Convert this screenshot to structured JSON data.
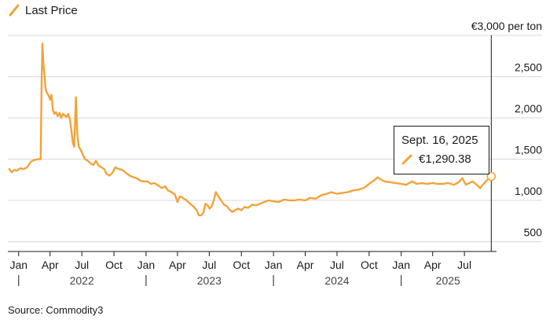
{
  "legend": {
    "series_label": "Last Price"
  },
  "source": "Source: Commodity3",
  "tooltip": {
    "date": "Sept. 16, 2025",
    "value": "€1,290.38"
  },
  "colors": {
    "line": "#f2a33a",
    "grid": "#d9d9d9",
    "text": "#1a1a1a",
    "axis": "#1a1a1a"
  },
  "chart_data": {
    "type": "line",
    "title": "",
    "xlabel": "",
    "ylabel": "",
    "unit_label": "€3,000 per ton",
    "y_axis_position": "right",
    "ylim": [
      500,
      3000
    ],
    "y_ticks": [
      500,
      1000,
      1500,
      2000,
      2500,
      3000
    ],
    "y_tick_labels": [
      "500",
      "1,000",
      "1,500",
      "2,000",
      "2,500",
      "€3,000 per ton"
    ],
    "x_range": [
      "2021-12-01",
      "2025-10-01"
    ],
    "month_ticks": [
      {
        "date": "2022-01-01",
        "label": "Jan"
      },
      {
        "date": "2022-04-01",
        "label": "Apr"
      },
      {
        "date": "2022-07-01",
        "label": "Jul"
      },
      {
        "date": "2022-10-01",
        "label": "Oct"
      },
      {
        "date": "2023-01-01",
        "label": "Jan"
      },
      {
        "date": "2023-04-01",
        "label": "Apr"
      },
      {
        "date": "2023-07-01",
        "label": "Jul"
      },
      {
        "date": "2023-10-01",
        "label": "Oct"
      },
      {
        "date": "2024-01-01",
        "label": "Jan"
      },
      {
        "date": "2024-04-01",
        "label": "Apr"
      },
      {
        "date": "2024-07-01",
        "label": "Jul"
      },
      {
        "date": "2024-10-01",
        "label": "Oct"
      },
      {
        "date": "2025-01-01",
        "label": "Jan"
      },
      {
        "date": "2025-04-01",
        "label": "Apr"
      },
      {
        "date": "2025-07-01",
        "label": "Jul"
      }
    ],
    "year_ticks": [
      {
        "date": "2022-01-01",
        "label": "2022",
        "label_date": "2022-07-01"
      },
      {
        "date": "2023-01-01",
        "label": "2023",
        "label_date": "2023-07-01"
      },
      {
        "date": "2024-01-01",
        "label": "2024",
        "label_date": "2024-07-01"
      },
      {
        "date": "2025-01-01",
        "label": "2025",
        "label_date": "2025-05-15"
      }
    ],
    "crosshair_date": "2025-09-16",
    "grid": true,
    "legend": "top-left",
    "series": [
      {
        "name": "Last Price",
        "points": [
          [
            "2021-12-05",
            1380
          ],
          [
            "2021-12-12",
            1340
          ],
          [
            "2021-12-19",
            1370
          ],
          [
            "2021-12-26",
            1360
          ],
          [
            "2022-01-05",
            1390
          ],
          [
            "2022-01-15",
            1380
          ],
          [
            "2022-01-25",
            1400
          ],
          [
            "2022-02-05",
            1470
          ],
          [
            "2022-02-15",
            1490
          ],
          [
            "2022-02-25",
            1500
          ],
          [
            "2022-03-05",
            1500
          ],
          [
            "2022-03-08",
            2500
          ],
          [
            "2022-03-10",
            2900
          ],
          [
            "2022-03-13",
            2650
          ],
          [
            "2022-03-16",
            2520
          ],
          [
            "2022-03-19",
            2350
          ],
          [
            "2022-03-23",
            2300
          ],
          [
            "2022-03-27",
            2280
          ],
          [
            "2022-04-01",
            2220
          ],
          [
            "2022-04-05",
            2280
          ],
          [
            "2022-04-09",
            2100
          ],
          [
            "2022-04-13",
            2050
          ],
          [
            "2022-04-18",
            2070
          ],
          [
            "2022-04-23",
            2020
          ],
          [
            "2022-04-28",
            2060
          ],
          [
            "2022-05-03",
            2000
          ],
          [
            "2022-05-08",
            2050
          ],
          [
            "2022-05-13",
            2030
          ],
          [
            "2022-05-18",
            2010
          ],
          [
            "2022-05-23",
            2050
          ],
          [
            "2022-05-28",
            1980
          ],
          [
            "2022-06-01",
            1850
          ],
          [
            "2022-06-05",
            1700
          ],
          [
            "2022-06-09",
            1650
          ],
          [
            "2022-06-14",
            2250
          ],
          [
            "2022-06-18",
            1800
          ],
          [
            "2022-06-22",
            1650
          ],
          [
            "2022-06-27",
            1620
          ],
          [
            "2022-07-03",
            1560
          ],
          [
            "2022-07-10",
            1500
          ],
          [
            "2022-07-18",
            1480
          ],
          [
            "2022-07-26",
            1450
          ],
          [
            "2022-08-03",
            1430
          ],
          [
            "2022-08-10",
            1480
          ],
          [
            "2022-08-18",
            1420
          ],
          [
            "2022-08-26",
            1400
          ],
          [
            "2022-09-03",
            1380
          ],
          [
            "2022-09-10",
            1320
          ],
          [
            "2022-09-18",
            1300
          ],
          [
            "2022-09-26",
            1330
          ],
          [
            "2022-10-05",
            1400
          ],
          [
            "2022-10-15",
            1380
          ],
          [
            "2022-10-25",
            1370
          ],
          [
            "2022-11-05",
            1330
          ],
          [
            "2022-11-15",
            1300
          ],
          [
            "2022-11-25",
            1280
          ],
          [
            "2022-12-05",
            1270
          ],
          [
            "2022-12-15",
            1240
          ],
          [
            "2022-12-25",
            1230
          ],
          [
            "2023-01-05",
            1230
          ],
          [
            "2023-01-15",
            1200
          ],
          [
            "2023-01-25",
            1210
          ],
          [
            "2023-02-05",
            1180
          ],
          [
            "2023-02-15",
            1150
          ],
          [
            "2023-02-25",
            1170
          ],
          [
            "2023-03-05",
            1120
          ],
          [
            "2023-03-15",
            1100
          ],
          [
            "2023-03-25",
            1070
          ],
          [
            "2023-04-01",
            980
          ],
          [
            "2023-04-08",
            1050
          ],
          [
            "2023-04-16",
            1030
          ],
          [
            "2023-04-24",
            1010
          ],
          [
            "2023-05-02",
            980
          ],
          [
            "2023-05-10",
            950
          ],
          [
            "2023-05-18",
            920
          ],
          [
            "2023-05-26",
            880
          ],
          [
            "2023-06-01",
            820
          ],
          [
            "2023-06-08",
            820
          ],
          [
            "2023-06-14",
            850
          ],
          [
            "2023-06-20",
            960
          ],
          [
            "2023-06-26",
            940
          ],
          [
            "2023-07-02",
            900
          ],
          [
            "2023-07-08",
            930
          ],
          [
            "2023-07-14",
            1000
          ],
          [
            "2023-07-20",
            1100
          ],
          [
            "2023-07-27",
            1050
          ],
          [
            "2023-08-04",
            1000
          ],
          [
            "2023-08-12",
            950
          ],
          [
            "2023-08-20",
            930
          ],
          [
            "2023-08-28",
            890
          ],
          [
            "2023-09-05",
            860
          ],
          [
            "2023-09-13",
            880
          ],
          [
            "2023-09-21",
            900
          ],
          [
            "2023-10-01",
            880
          ],
          [
            "2023-10-10",
            920
          ],
          [
            "2023-10-20",
            910
          ],
          [
            "2023-11-01",
            950
          ],
          [
            "2023-11-12",
            940
          ],
          [
            "2023-11-24",
            960
          ],
          [
            "2023-12-05",
            980
          ],
          [
            "2023-12-18",
            1000
          ],
          [
            "2024-01-01",
            990
          ],
          [
            "2024-01-15",
            980
          ],
          [
            "2024-02-01",
            1010
          ],
          [
            "2024-02-15",
            1000
          ],
          [
            "2024-03-01",
            1000
          ],
          [
            "2024-03-15",
            1010
          ],
          [
            "2024-04-01",
            1000
          ],
          [
            "2024-04-15",
            1030
          ],
          [
            "2024-05-01",
            1020
          ],
          [
            "2024-05-15",
            1060
          ],
          [
            "2024-06-01",
            1080
          ],
          [
            "2024-06-15",
            1100
          ],
          [
            "2024-07-01",
            1080
          ],
          [
            "2024-07-15",
            1090
          ],
          [
            "2024-08-01",
            1100
          ],
          [
            "2024-08-15",
            1120
          ],
          [
            "2024-09-01",
            1130
          ],
          [
            "2024-09-15",
            1150
          ],
          [
            "2024-10-01",
            1200
          ],
          [
            "2024-10-15",
            1240
          ],
          [
            "2024-10-25",
            1280
          ],
          [
            "2024-11-05",
            1250
          ],
          [
            "2024-11-15",
            1230
          ],
          [
            "2024-12-01",
            1220
          ],
          [
            "2024-12-15",
            1210
          ],
          [
            "2025-01-01",
            1200
          ],
          [
            "2025-01-15",
            1190
          ],
          [
            "2025-02-01",
            1230
          ],
          [
            "2025-02-15",
            1200
          ],
          [
            "2025-03-01",
            1210
          ],
          [
            "2025-03-15",
            1200
          ],
          [
            "2025-04-01",
            1210
          ],
          [
            "2025-04-15",
            1200
          ],
          [
            "2025-05-01",
            1200
          ],
          [
            "2025-05-15",
            1210
          ],
          [
            "2025-06-01",
            1190
          ],
          [
            "2025-06-15",
            1220
          ],
          [
            "2025-06-25",
            1270
          ],
          [
            "2025-07-05",
            1190
          ],
          [
            "2025-07-15",
            1210
          ],
          [
            "2025-07-25",
            1230
          ],
          [
            "2025-08-05",
            1190
          ],
          [
            "2025-08-15",
            1150
          ],
          [
            "2025-08-25",
            1200
          ],
          [
            "2025-09-05",
            1250
          ],
          [
            "2025-09-16",
            1290.38
          ]
        ]
      }
    ]
  }
}
